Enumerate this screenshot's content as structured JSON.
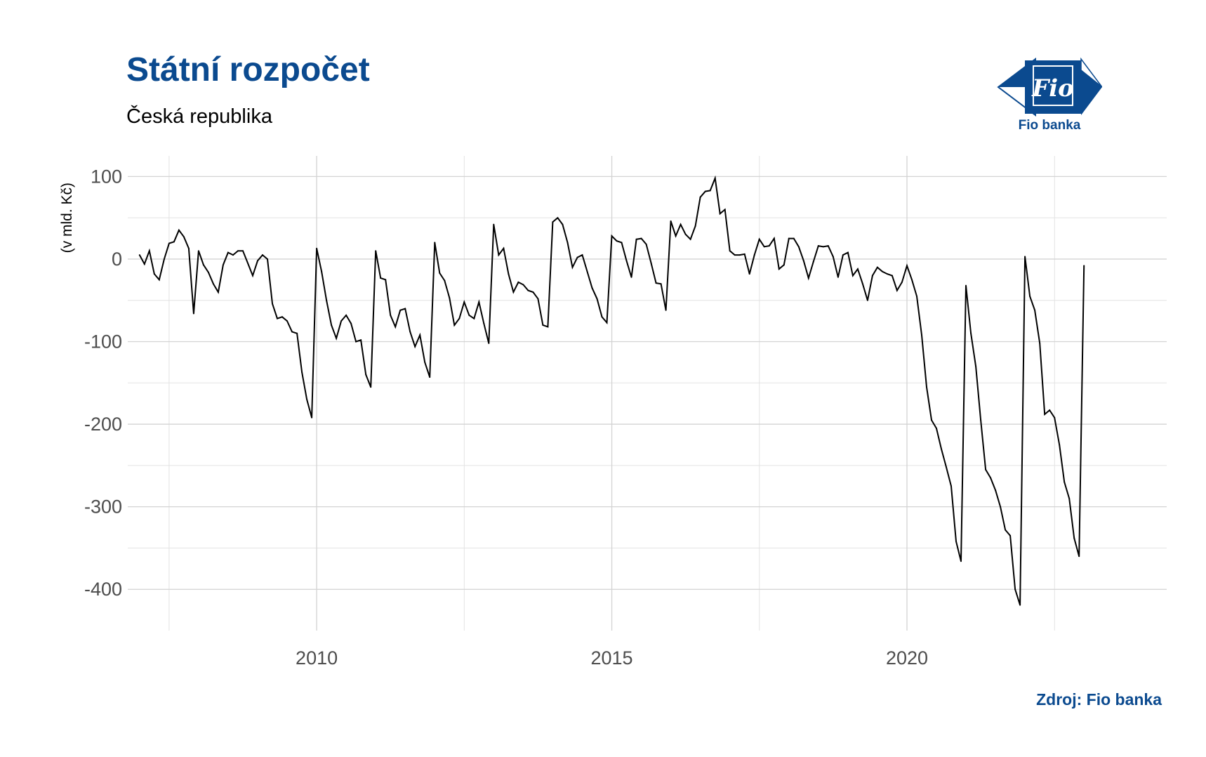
{
  "title": "Státní rozpočet",
  "subtitle": "Česká republika",
  "source": "Zdroj: Fio banka",
  "logo": {
    "mark_text": "Fio",
    "caption": "Fio banka",
    "color": "#0b4a8f"
  },
  "colors": {
    "title": "#0b4a8f",
    "line": "#000000",
    "grid": "#d3d3d3"
  },
  "chart_data": {
    "type": "line",
    "title": "Státní rozpočet",
    "subtitle": "Česká republika",
    "xlabel": "",
    "ylabel": "(v mld. Kč)",
    "xlim": [
      2006.8,
      2024.4
    ],
    "ylim": [
      -450,
      125
    ],
    "x_ticks": [
      2010,
      2015,
      2020
    ],
    "x_tick_labels": [
      "2010",
      "2015",
      "2020"
    ],
    "y_ticks": [
      100,
      0,
      -100,
      -200,
      -300,
      -400
    ],
    "y_tick_labels": [
      "100",
      "0",
      "-100",
      "-200",
      "-300",
      "-400"
    ],
    "grid": true,
    "legend": "none",
    "series": [
      {
        "start": 2007.0,
        "step": 0.08333,
        "values": [
          5,
          -6,
          10,
          -18,
          -25,
          0,
          19,
          21,
          35,
          27,
          13,
          -66,
          10,
          -7,
          -16,
          -30,
          -40,
          -7,
          8,
          5,
          10,
          10,
          -5,
          -20,
          -2,
          5,
          0,
          -54,
          -72,
          -70,
          -75,
          -88,
          -90,
          -137,
          -170,
          -192,
          13,
          -15,
          -50,
          -80,
          -96,
          -75,
          -68,
          -78,
          -100,
          -98,
          -140,
          -155,
          10,
          -23,
          -25,
          -68,
          -82,
          -62,
          -60,
          -88,
          -106,
          -92,
          -125,
          -143,
          20,
          -17,
          -26,
          -47,
          -80,
          -72,
          -52,
          -68,
          -72,
          -52,
          -78,
          -102,
          42,
          5,
          13,
          -18,
          -40,
          -28,
          -31,
          -38,
          -40,
          -48,
          -80,
          -82,
          45,
          50,
          42,
          20,
          -10,
          2,
          5,
          -15,
          -35,
          -48,
          -70,
          -77,
          28,
          22,
          20,
          -2,
          -22,
          24,
          25,
          18,
          -5,
          -29,
          -30,
          -62,
          46,
          28,
          42,
          30,
          24,
          40,
          75,
          82,
          83,
          98,
          55,
          60,
          10,
          5,
          5,
          6,
          -18,
          5,
          24,
          15,
          16,
          25,
          -12,
          -7,
          25,
          25,
          15,
          -2,
          -23,
          -3,
          16,
          15,
          16,
          3,
          -22,
          5,
          8,
          -20,
          -12,
          -30,
          -50,
          -20,
          -10,
          -15,
          -18,
          -20,
          -38,
          -28,
          -8,
          -25,
          -45,
          -92,
          -155,
          -195,
          -205,
          -230,
          -252,
          -275,
          -342,
          -366,
          -32,
          -90,
          -130,
          -195,
          -255,
          -265,
          -280,
          -300,
          -328,
          -335,
          -400,
          -419,
          3,
          -45,
          -62,
          -102,
          -188,
          -183,
          -192,
          -225,
          -270,
          -290,
          -338,
          -360,
          -8
        ]
      }
    ]
  }
}
